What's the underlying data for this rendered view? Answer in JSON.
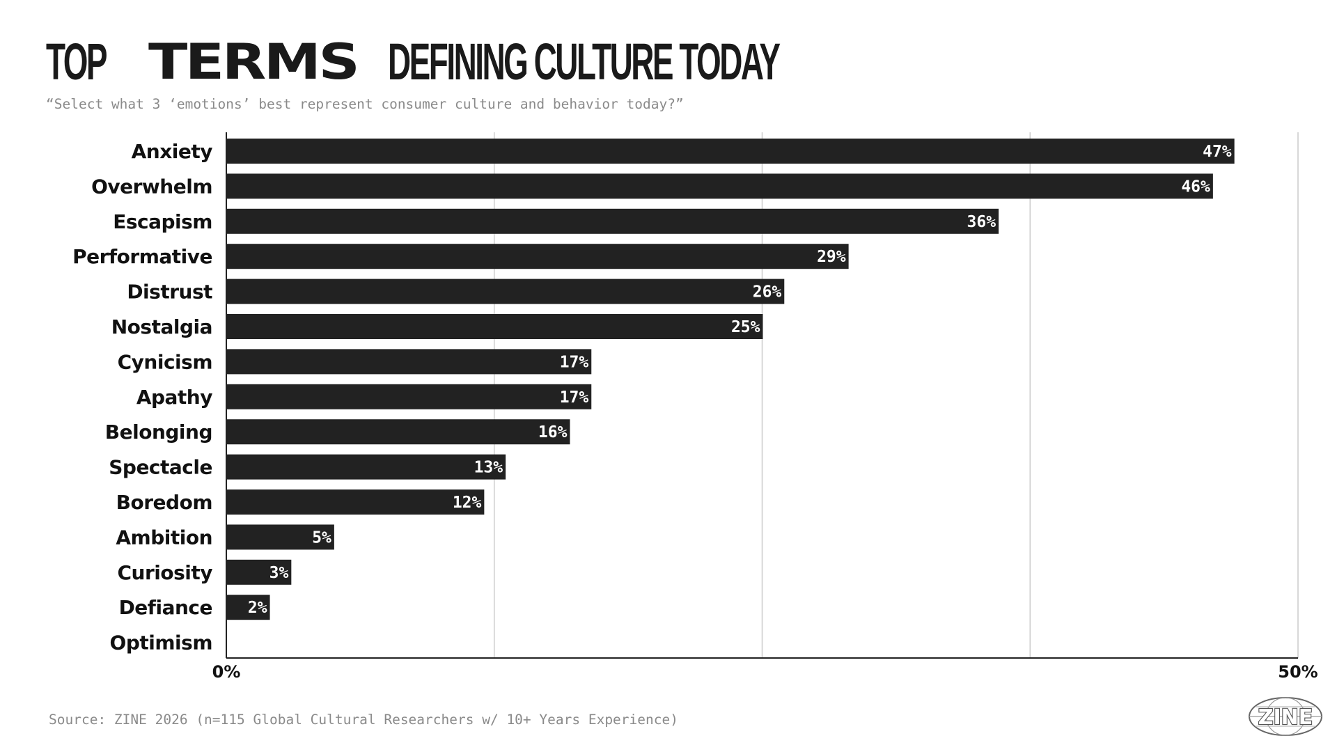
{
  "header": {
    "title_part1": "TOP",
    "title_part2": "TERMS",
    "title_part3": "DEFINING CULTURE TODAY",
    "subtitle": "“Select what 3 ‘emotions’ best represent consumer culture and behavior today?”"
  },
  "footer": {
    "source": "Source: ZINE 2026 (n=115 Global Cultural Researchers w/ 10+ Years Experience)",
    "logo_text": "ZINE"
  },
  "colors": {
    "bar": "#222222",
    "grid": "#cccccc",
    "axis": "#222222",
    "bar_label": "#ffffff",
    "muted_text": "#8a8a8a"
  },
  "chart_data": {
    "type": "bar",
    "orientation": "horizontal",
    "categories": [
      "Anxiety",
      "Overwhelm",
      "Escapism",
      "Performative",
      "Distrust",
      "Nostalgia",
      "Cynicism",
      "Apathy",
      "Belonging",
      "Spectacle",
      "Boredom",
      "Ambition",
      "Curiosity",
      "Defiance",
      "Optimism"
    ],
    "values": [
      47,
      46,
      36,
      29,
      26,
      25,
      17,
      17,
      16,
      13,
      12,
      5,
      3,
      2,
      0
    ],
    "value_labels": [
      "47%",
      "46%",
      "36%",
      "29%",
      "26%",
      "25%",
      "17%",
      "17%",
      "16%",
      "13%",
      "12%",
      "5%",
      "3%",
      "2%",
      ""
    ],
    "xlim": [
      0,
      50
    ],
    "x_tick_labels": [
      "0%",
      "50%"
    ],
    "grid": true
  }
}
